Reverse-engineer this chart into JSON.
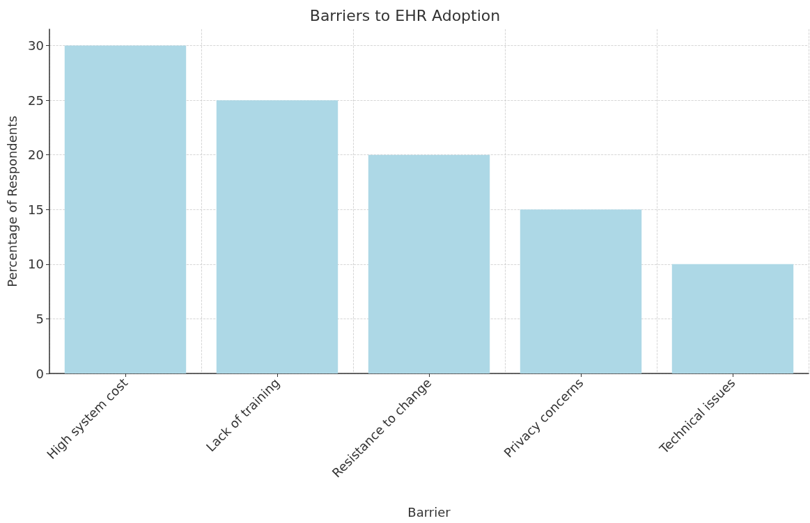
{
  "chart_data": {
    "type": "bar",
    "title": "Barriers to EHR Adoption",
    "xlabel": "Barrier",
    "ylabel": "Percentage of Respondents",
    "categories": [
      "High system cost",
      "Lack of training",
      "Resistance to change",
      "Privacy concerns",
      "Technical issues"
    ],
    "values": [
      30,
      25,
      20,
      15,
      10
    ],
    "color": "#add8e6",
    "ylim": [
      0,
      31.5
    ],
    "yticks": [
      0,
      5,
      10,
      15,
      20,
      25,
      30
    ],
    "grid": true,
    "line_style": "dashed"
  }
}
